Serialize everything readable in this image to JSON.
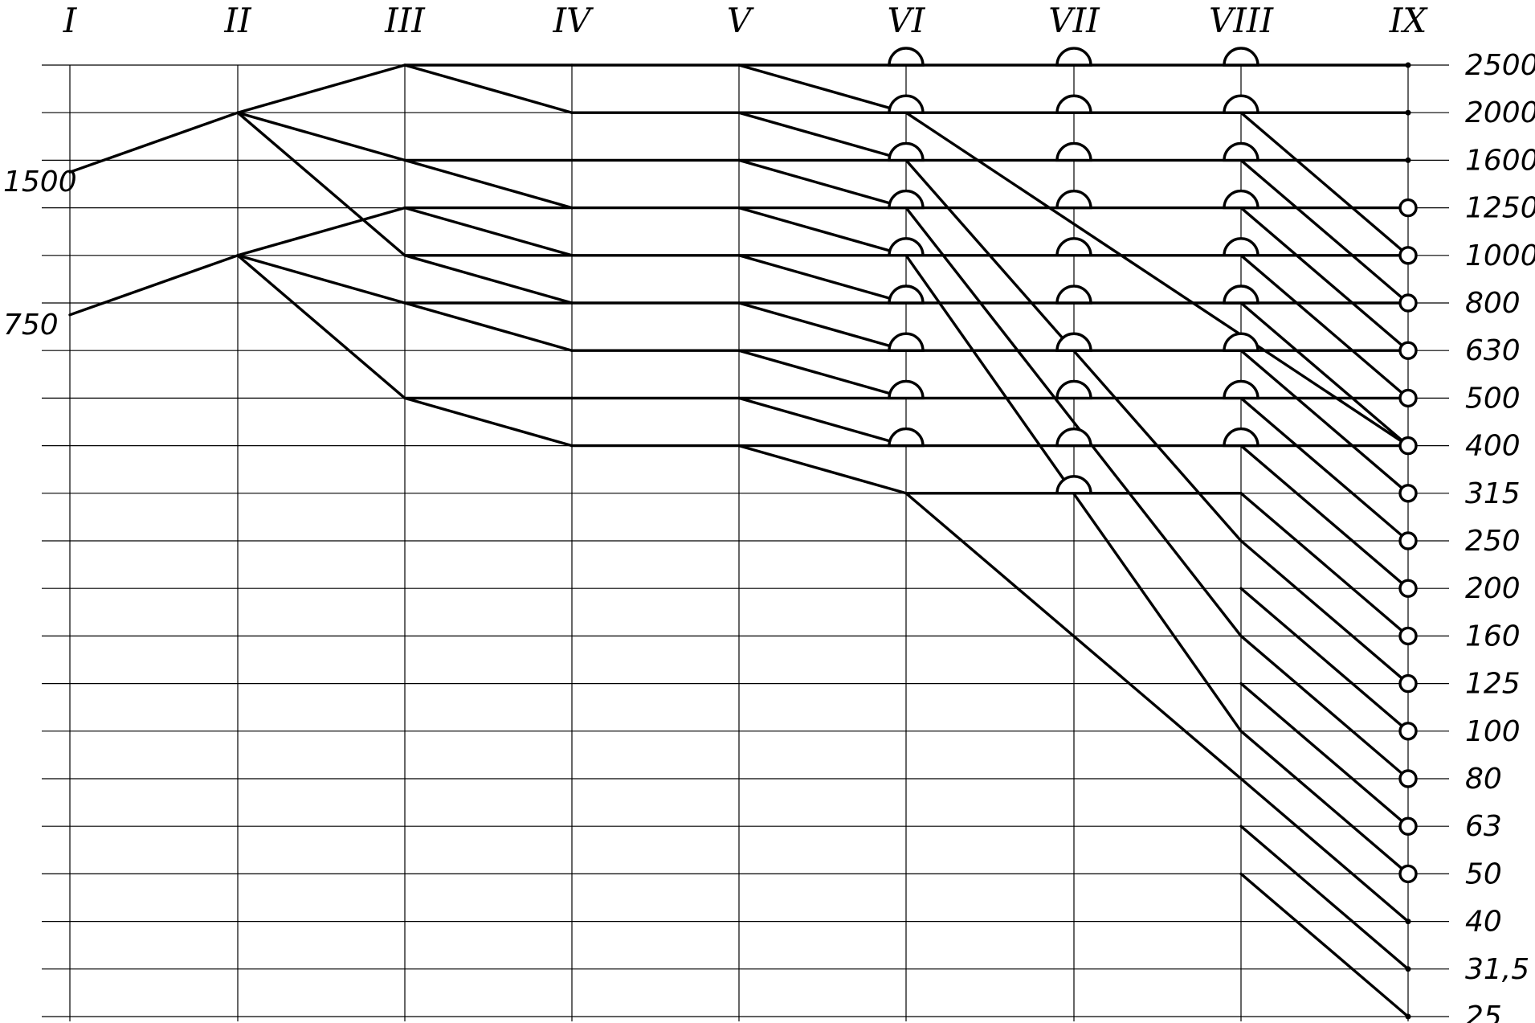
{
  "diagram": {
    "shafts": [
      "I",
      "II",
      "III",
      "IV",
      "V",
      "VI",
      "VII",
      "VIII",
      "IX"
    ],
    "speeds": [
      "2500",
      "2000",
      "1600",
      "1250",
      "1000",
      "800",
      "630",
      "500",
      "400",
      "315",
      "250",
      "200",
      "160",
      "125",
      "100",
      "80",
      "63",
      "50",
      "40",
      "31,5",
      "25"
    ],
    "input_speeds": [
      {
        "label": "1500",
        "level": 2.25
      },
      {
        "label": "750",
        "level": 5.25
      }
    ],
    "paths": [
      [
        [
          0,
          2.25
        ],
        [
          1,
          1
        ]
      ],
      [
        [
          0,
          5.25
        ],
        [
          1,
          4
        ]
      ],
      [
        [
          1,
          1
        ],
        [
          2,
          0
        ]
      ],
      [
        [
          1,
          1
        ],
        [
          2,
          2
        ]
      ],
      [
        [
          1,
          1
        ],
        [
          2,
          4
        ]
      ],
      [
        [
          1,
          4
        ],
        [
          2,
          3
        ]
      ],
      [
        [
          1,
          4
        ],
        [
          2,
          5
        ]
      ],
      [
        [
          1,
          4
        ],
        [
          2,
          7
        ]
      ],
      [
        [
          2,
          0
        ],
        [
          3,
          0
        ]
      ],
      [
        [
          2,
          0
        ],
        [
          3,
          1
        ]
      ],
      [
        [
          2,
          2
        ],
        [
          3,
          2
        ]
      ],
      [
        [
          2,
          2
        ],
        [
          3,
          3
        ]
      ],
      [
        [
          2,
          3
        ],
        [
          3,
          3
        ]
      ],
      [
        [
          2,
          3
        ],
        [
          3,
          4
        ]
      ],
      [
        [
          2,
          4
        ],
        [
          3,
          4
        ]
      ],
      [
        [
          2,
          4
        ],
        [
          3,
          5
        ]
      ],
      [
        [
          2,
          5
        ],
        [
          3,
          5
        ]
      ],
      [
        [
          2,
          5
        ],
        [
          3,
          6
        ]
      ],
      [
        [
          2,
          7
        ],
        [
          3,
          7
        ]
      ],
      [
        [
          2,
          7
        ],
        [
          3,
          8
        ]
      ],
      [
        [
          3,
          0
        ],
        [
          4,
          0
        ]
      ],
      [
        [
          3,
          1
        ],
        [
          4,
          1
        ]
      ],
      [
        [
          3,
          2
        ],
        [
          4,
          2
        ]
      ],
      [
        [
          3,
          3
        ],
        [
          4,
          3
        ]
      ],
      [
        [
          3,
          4
        ],
        [
          4,
          4
        ]
      ],
      [
        [
          3,
          5
        ],
        [
          4,
          5
        ]
      ],
      [
        [
          3,
          6
        ],
        [
          4,
          6
        ]
      ],
      [
        [
          3,
          7
        ],
        [
          4,
          7
        ]
      ],
      [
        [
          3,
          8
        ],
        [
          4,
          8
        ]
      ],
      [
        [
          4,
          0
        ],
        [
          8,
          0
        ]
      ],
      [
        [
          4,
          0
        ],
        [
          5,
          1
        ]
      ],
      [
        [
          4,
          1
        ],
        [
          8,
          1
        ]
      ],
      [
        [
          4,
          1
        ],
        [
          5,
          2
        ]
      ],
      [
        [
          4,
          2
        ],
        [
          8,
          2
        ]
      ],
      [
        [
          4,
          2
        ],
        [
          5,
          3
        ]
      ],
      [
        [
          4,
          3
        ],
        [
          8,
          3
        ]
      ],
      [
        [
          4,
          3
        ],
        [
          5,
          4
        ]
      ],
      [
        [
          4,
          4
        ],
        [
          8,
          4
        ]
      ],
      [
        [
          4,
          4
        ],
        [
          5,
          5
        ]
      ],
      [
        [
          4,
          5
        ],
        [
          8,
          5
        ]
      ],
      [
        [
          4,
          5
        ],
        [
          5,
          6
        ]
      ],
      [
        [
          4,
          6
        ],
        [
          8,
          6
        ]
      ],
      [
        [
          4,
          6
        ],
        [
          5,
          7
        ]
      ],
      [
        [
          4,
          7
        ],
        [
          8,
          7
        ]
      ],
      [
        [
          4,
          7
        ],
        [
          5,
          8
        ]
      ],
      [
        [
          4,
          8
        ],
        [
          8,
          8
        ]
      ],
      [
        [
          4,
          8
        ],
        [
          5,
          9
        ]
      ],
      [
        [
          5,
          1
        ],
        [
          8,
          8
        ]
      ],
      [
        [
          5,
          2
        ],
        [
          7,
          10
        ]
      ],
      [
        [
          5,
          3
        ],
        [
          7,
          12
        ]
      ],
      [
        [
          5,
          4
        ],
        [
          7,
          14
        ]
      ],
      [
        [
          5,
          9
        ],
        [
          7,
          9
        ]
      ],
      [
        [
          5,
          9
        ],
        [
          7,
          15
        ]
      ],
      [
        [
          6,
          9
        ],
        [
          7,
          9
        ]
      ],
      [
        [
          7,
          1
        ],
        [
          8,
          4
        ]
      ],
      [
        [
          7,
          2
        ],
        [
          8,
          5
        ]
      ],
      [
        [
          7,
          3
        ],
        [
          8,
          6
        ]
      ],
      [
        [
          7,
          4
        ],
        [
          8,
          7
        ]
      ],
      [
        [
          7,
          5
        ],
        [
          8,
          8
        ]
      ],
      [
        [
          7,
          6
        ],
        [
          8,
          9
        ]
      ],
      [
        [
          7,
          7
        ],
        [
          8,
          10
        ]
      ],
      [
        [
          7,
          8
        ],
        [
          8,
          11
        ]
      ],
      [
        [
          7,
          9
        ],
        [
          8,
          12
        ]
      ],
      [
        [
          7,
          10
        ],
        [
          8,
          13
        ]
      ],
      [
        [
          7,
          11
        ],
        [
          8,
          14
        ]
      ],
      [
        [
          7,
          12
        ],
        [
          8,
          15
        ]
      ],
      [
        [
          7,
          13
        ],
        [
          8,
          16
        ]
      ],
      [
        [
          7,
          14
        ],
        [
          8,
          17
        ]
      ],
      [
        [
          7,
          15
        ],
        [
          8,
          18
        ]
      ],
      [
        [
          7,
          16
        ],
        [
          8,
          19
        ]
      ],
      [
        [
          7,
          17
        ],
        [
          8,
          20
        ]
      ]
    ],
    "bumps": [
      [
        5,
        0
      ],
      [
        5,
        1
      ],
      [
        5,
        2
      ],
      [
        5,
        3
      ],
      [
        5,
        4
      ],
      [
        5,
        5
      ],
      [
        5,
        6
      ],
      [
        5,
        7
      ],
      [
        5,
        8
      ],
      [
        6,
        0
      ],
      [
        6,
        1
      ],
      [
        6,
        2
      ],
      [
        6,
        3
      ],
      [
        6,
        4
      ],
      [
        6,
        5
      ],
      [
        6,
        6
      ],
      [
        6,
        7
      ],
      [
        6,
        8
      ],
      [
        6,
        9
      ],
      [
        7,
        0
      ],
      [
        7,
        1
      ],
      [
        7,
        2
      ],
      [
        7,
        3
      ],
      [
        7,
        4
      ],
      [
        7,
        5
      ],
      [
        7,
        6
      ],
      [
        7,
        7
      ],
      [
        7,
        8
      ]
    ],
    "rings": [
      3,
      4,
      5,
      6,
      7,
      8,
      9,
      10,
      11,
      12,
      13,
      14,
      15,
      16,
      17
    ],
    "dots": [
      0,
      1,
      2,
      18,
      19,
      20
    ]
  }
}
